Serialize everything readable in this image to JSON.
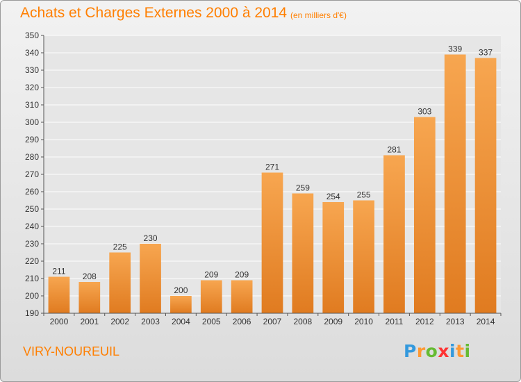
{
  "title": "Achats et Charges Externes 2000 à 2014",
  "subtitle": "(en milliers d'€)",
  "commune": "VIRY-NOUREUIL",
  "logo": {
    "letters": [
      "P",
      "r",
      "o",
      "x",
      "i",
      "t",
      "i"
    ],
    "colors": [
      "#3399dd",
      "#ff9933",
      "#66bb33",
      "#ff3333",
      "#3399dd",
      "#ff9933",
      "#66bb33"
    ]
  },
  "colors": {
    "bar_light": "#f7a650",
    "bar_dark": "#e07b20",
    "text": "#ff7f00"
  },
  "chart_data": {
    "type": "bar",
    "categories": [
      "2000",
      "2001",
      "2002",
      "2003",
      "2004",
      "2005",
      "2006",
      "2007",
      "2008",
      "2009",
      "2010",
      "2011",
      "2012",
      "2013",
      "2014"
    ],
    "values": [
      211,
      208,
      225,
      230,
      200,
      209,
      209,
      271,
      259,
      254,
      255,
      281,
      303,
      339,
      337
    ],
    "data_labels": [
      "211",
      "208",
      "225",
      "230",
      "200",
      "209",
      "209",
      "271",
      "259",
      "254",
      "255",
      "281",
      "303",
      "339",
      "337"
    ],
    "title": "Achats et Charges Externes 2000 à 2014",
    "xlabel": "",
    "ylabel": "",
    "ylim": [
      190,
      350
    ],
    "yticks": [
      190,
      200,
      210,
      220,
      230,
      240,
      250,
      260,
      270,
      280,
      290,
      300,
      310,
      320,
      330,
      340,
      350
    ],
    "grid": true
  }
}
